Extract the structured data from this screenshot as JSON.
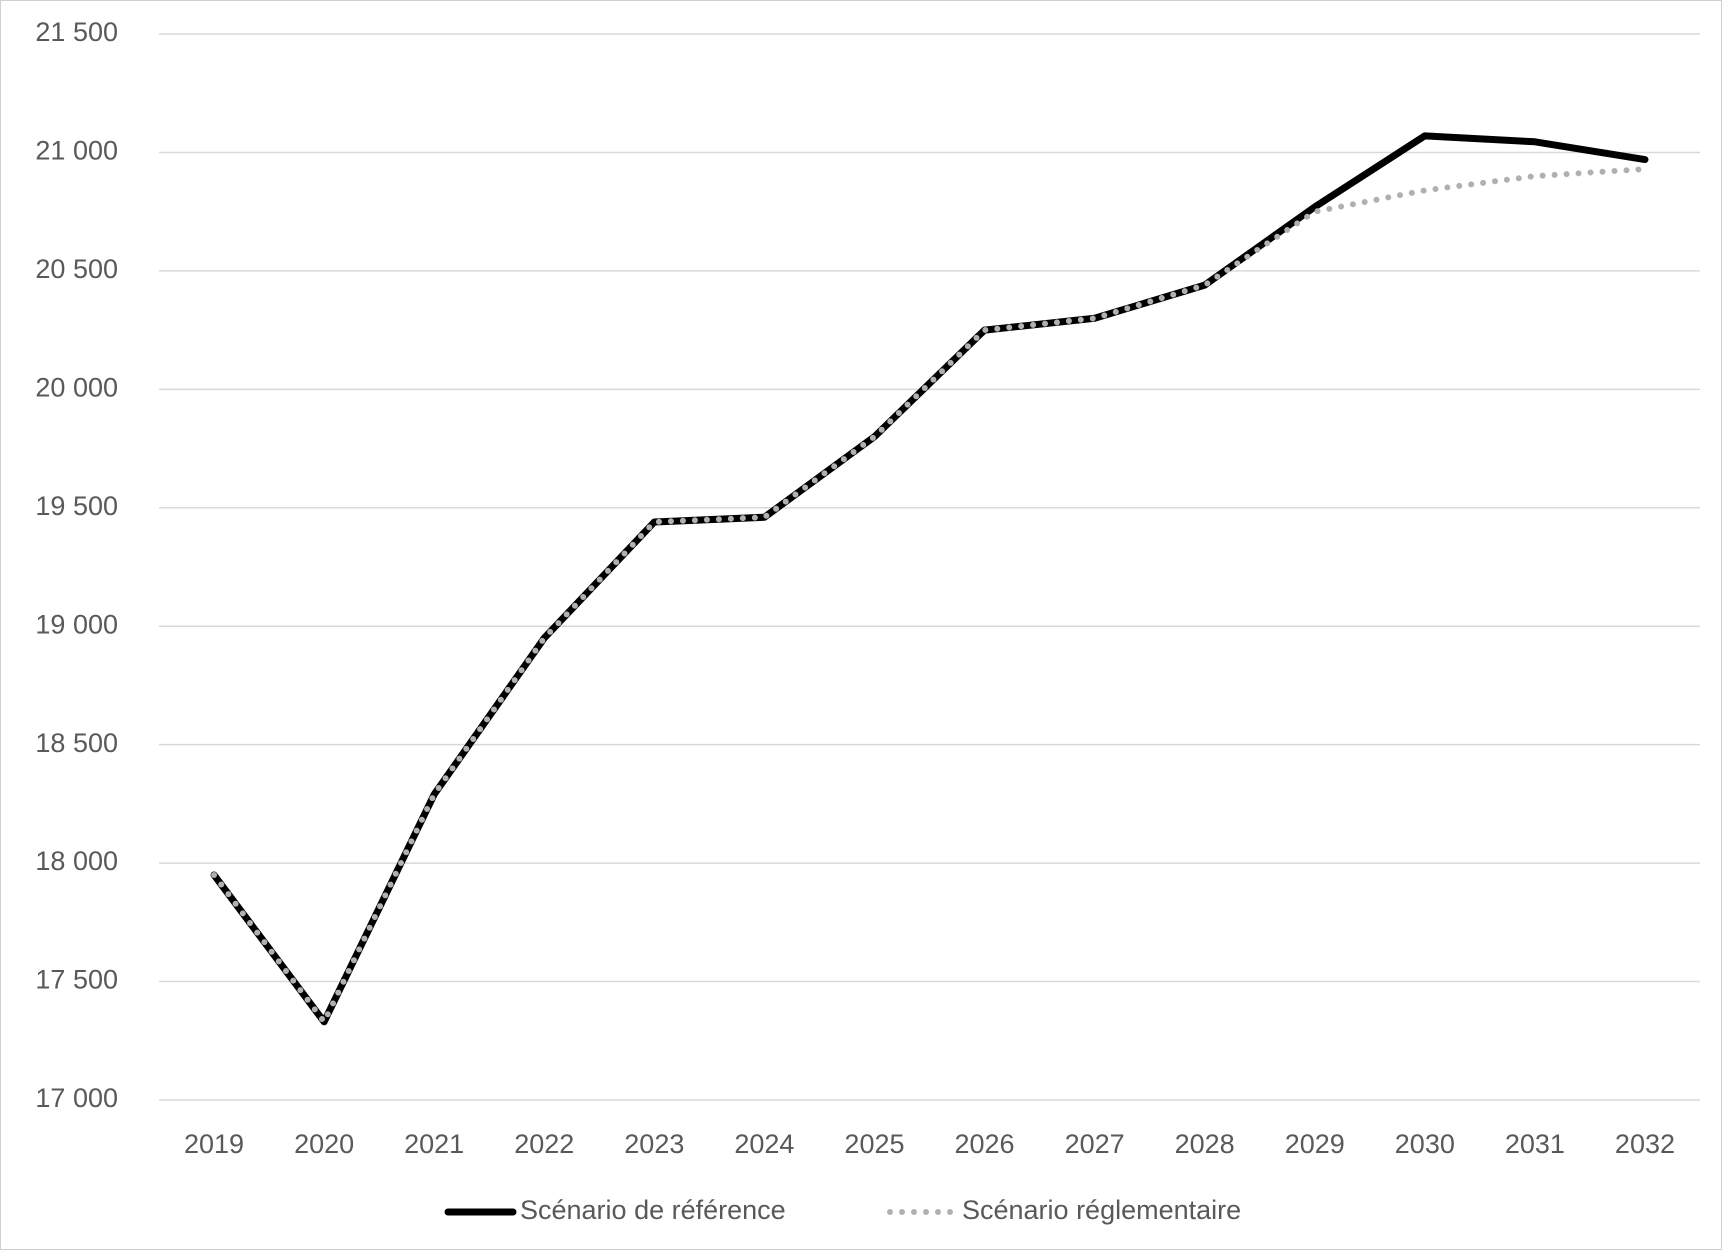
{
  "chart_data": {
    "type": "line",
    "categories": [
      "2019",
      "2020",
      "2021",
      "2022",
      "2023",
      "2024",
      "2025",
      "2026",
      "2027",
      "2028",
      "2029",
      "2030",
      "2031",
      "2032"
    ],
    "series": [
      {
        "name": "Scénario de référence",
        "color": "#000000",
        "style": "solid",
        "values": [
          17950,
          17330,
          18290,
          18950,
          19440,
          19460,
          19800,
          20250,
          20300,
          20440,
          20770,
          21070,
          21045,
          20970
        ]
      },
      {
        "name": "Scénario réglementaire",
        "color": "#b0b0b0",
        "style": "dotted",
        "values": [
          17950,
          17330,
          18290,
          18950,
          19440,
          19460,
          19800,
          20250,
          20300,
          20440,
          20750,
          20840,
          20900,
          20930
        ]
      }
    ],
    "ylim": [
      17000,
      21500
    ],
    "yticks": [
      {
        "value": 17000,
        "label": "17 000"
      },
      {
        "value": 17500,
        "label": "17 500"
      },
      {
        "value": 18000,
        "label": "18 000"
      },
      {
        "value": 18500,
        "label": "18 500"
      },
      {
        "value": 19000,
        "label": "19 000"
      },
      {
        "value": 19500,
        "label": "19 500"
      },
      {
        "value": 20000,
        "label": "20 000"
      },
      {
        "value": 20500,
        "label": "20 500"
      },
      {
        "value": 21000,
        "label": "21 000"
      },
      {
        "value": 21500,
        "label": "21 500"
      }
    ],
    "grid": true,
    "legend": "bottom"
  }
}
